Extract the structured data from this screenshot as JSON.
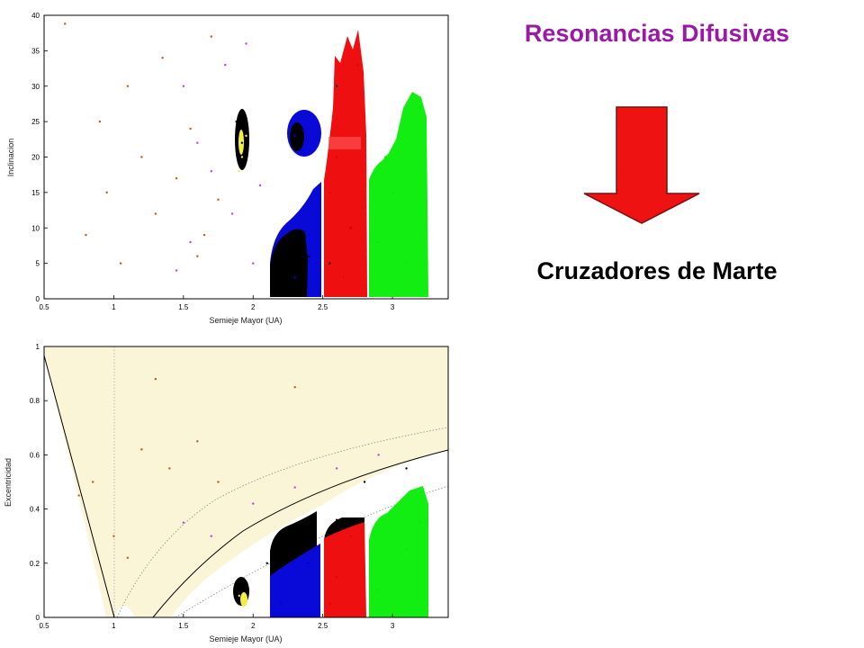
{
  "slide": {
    "title": "Resonancias Difusivas",
    "subtitle": "Cruzadores de Marte",
    "title_color": "#9a1aa6",
    "arrow_color": "#ef1212",
    "arrow_icon": "down-arrow-icon"
  },
  "chart_data": [
    {
      "type": "scatter",
      "title": "",
      "xlabel": "Semieje Mayor (UA)",
      "ylabel": "Inclinacion",
      "xlim": [
        0.5,
        3.4
      ],
      "ylim": [
        0,
        40
      ],
      "xticks": [
        "0.5",
        "1",
        "1.5",
        "2",
        "2.5",
        "3"
      ],
      "yticks": [
        "0",
        "5",
        "10",
        "15",
        "20",
        "25",
        "30",
        "35",
        "40"
      ],
      "grid": false,
      "series": [
        {
          "color": "#c45a16",
          "points": [
            [
              0.65,
              38.8
            ],
            [
              0.9,
              25
            ],
            [
              1.1,
              30
            ],
            [
              1.3,
              12
            ],
            [
              1.7,
              37
            ],
            [
              1.05,
              5
            ],
            [
              0.8,
              9
            ],
            [
              1.55,
              24
            ],
            [
              1.45,
              17
            ],
            [
              1.6,
              6
            ],
            [
              1.75,
              14
            ],
            [
              1.2,
              20
            ],
            [
              0.95,
              15
            ],
            [
              1.35,
              34
            ],
            [
              1.65,
              9
            ]
          ]
        },
        {
          "color": "#c040e0",
          "points": [
            [
              1.95,
              36
            ],
            [
              1.55,
              8
            ],
            [
              1.7,
              18
            ],
            [
              2.0,
              5
            ],
            [
              1.85,
              12
            ],
            [
              1.5,
              30
            ],
            [
              1.6,
              22
            ],
            [
              2.05,
              16
            ],
            [
              1.45,
              4
            ],
            [
              1.8,
              33
            ]
          ]
        },
        {
          "color": "#000000",
          "points": [
            [
              1.92,
              22
            ],
            [
              1.88,
              25
            ],
            [
              2.25,
              4
            ],
            [
              2.3,
              2
            ],
            [
              2.4,
              6
            ],
            [
              2.6,
              30
            ],
            [
              2.7,
              10
            ],
            [
              2.55,
              5
            ]
          ]
        },
        {
          "color": "#f0f040",
          "points": [
            [
              1.92,
              20
            ],
            [
              1.9,
              18
            ],
            [
              1.95,
              23
            ]
          ]
        },
        {
          "color": "#0000dd",
          "points": [
            [
              2.3,
              23
            ],
            [
              2.35,
              21
            ],
            [
              2.4,
              9
            ],
            [
              2.45,
              5
            ],
            [
              2.3,
              3
            ]
          ]
        },
        {
          "color": "#ee0000",
          "points": [
            [
              2.6,
              20
            ],
            [
              2.7,
              10
            ],
            [
              2.75,
              33
            ],
            [
              2.55,
              15
            ],
            [
              2.65,
              3
            ]
          ]
        },
        {
          "color": "#00ee00",
          "points": [
            [
              2.9,
              8
            ],
            [
              3.0,
              15
            ],
            [
              3.2,
              27
            ],
            [
              3.1,
              5
            ],
            [
              2.95,
              20
            ]
          ]
        }
      ]
    },
    {
      "type": "scatter",
      "title": "",
      "xlabel": "Semieje Mayor (UA)",
      "ylabel": "Excentricidad",
      "xlim": [
        0.5,
        3.4
      ],
      "ylim": [
        0,
        1
      ],
      "xticks": [
        "0.5",
        "1",
        "1.5",
        "2",
        "2.5",
        "3"
      ],
      "yticks": [
        "0",
        "0.2",
        "0.4",
        "0.6",
        "0.8",
        "1"
      ],
      "grid": false,
      "series": [
        {
          "color": "#c45a16",
          "points": [
            [
              0.85,
              0.5
            ],
            [
              1.2,
              0.62
            ],
            [
              1.4,
              0.55
            ],
            [
              1.0,
              0.3
            ],
            [
              1.6,
              0.65
            ],
            [
              1.3,
              0.88
            ],
            [
              0.75,
              0.45
            ],
            [
              1.1,
              0.22
            ],
            [
              1.75,
              0.5
            ],
            [
              2.3,
              0.85
            ]
          ]
        },
        {
          "color": "#c040e0",
          "points": [
            [
              1.5,
              0.35
            ],
            [
              2.0,
              0.42
            ],
            [
              2.3,
              0.48
            ],
            [
              2.6,
              0.55
            ],
            [
              1.7,
              0.3
            ],
            [
              2.9,
              0.6
            ]
          ]
        },
        {
          "color": "#000000",
          "points": [
            [
              1.9,
              0.12
            ],
            [
              2.3,
              0.3
            ],
            [
              2.6,
              0.36
            ],
            [
              2.8,
              0.5
            ],
            [
              3.1,
              0.55
            ],
            [
              2.1,
              0.2
            ]
          ]
        },
        {
          "color": "#f0f040",
          "points": [
            [
              1.92,
              0.05
            ],
            [
              1.9,
              0.08
            ]
          ]
        },
        {
          "color": "#0000dd",
          "points": [
            [
              2.25,
              0.1
            ],
            [
              2.4,
              0.2
            ],
            [
              2.2,
              0.05
            ]
          ]
        },
        {
          "color": "#ee0000",
          "points": [
            [
              2.6,
              0.15
            ],
            [
              2.7,
              0.3
            ],
            [
              2.55,
              0.05
            ]
          ]
        },
        {
          "color": "#00ee00",
          "points": [
            [
              2.9,
              0.1
            ],
            [
              3.1,
              0.25
            ],
            [
              3.2,
              0.35
            ]
          ]
        }
      ]
    }
  ]
}
